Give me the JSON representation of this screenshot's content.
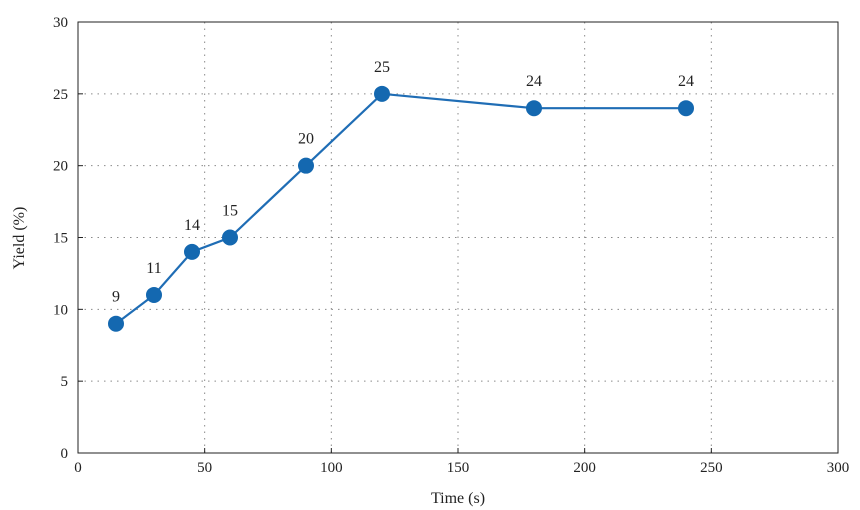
{
  "chart_data": {
    "type": "line",
    "title": "",
    "xlabel": "Time (s)",
    "ylabel": "Yield (%)",
    "xlim": [
      0,
      300
    ],
    "ylim": [
      0,
      30
    ],
    "x_ticks": [
      0,
      50,
      100,
      150,
      200,
      250,
      300
    ],
    "y_ticks": [
      0,
      5,
      10,
      15,
      20,
      25,
      30
    ],
    "grid": true,
    "series": [
      {
        "x": [
          15,
          30,
          45,
          60,
          90,
          120,
          180,
          240
        ],
        "values": [
          9,
          11,
          14,
          15,
          20,
          25,
          24,
          24
        ],
        "labels": [
          "9",
          "11",
          "14",
          "15",
          "20",
          "25",
          "24",
          "24"
        ],
        "color": "#1f6db5"
      }
    ]
  }
}
